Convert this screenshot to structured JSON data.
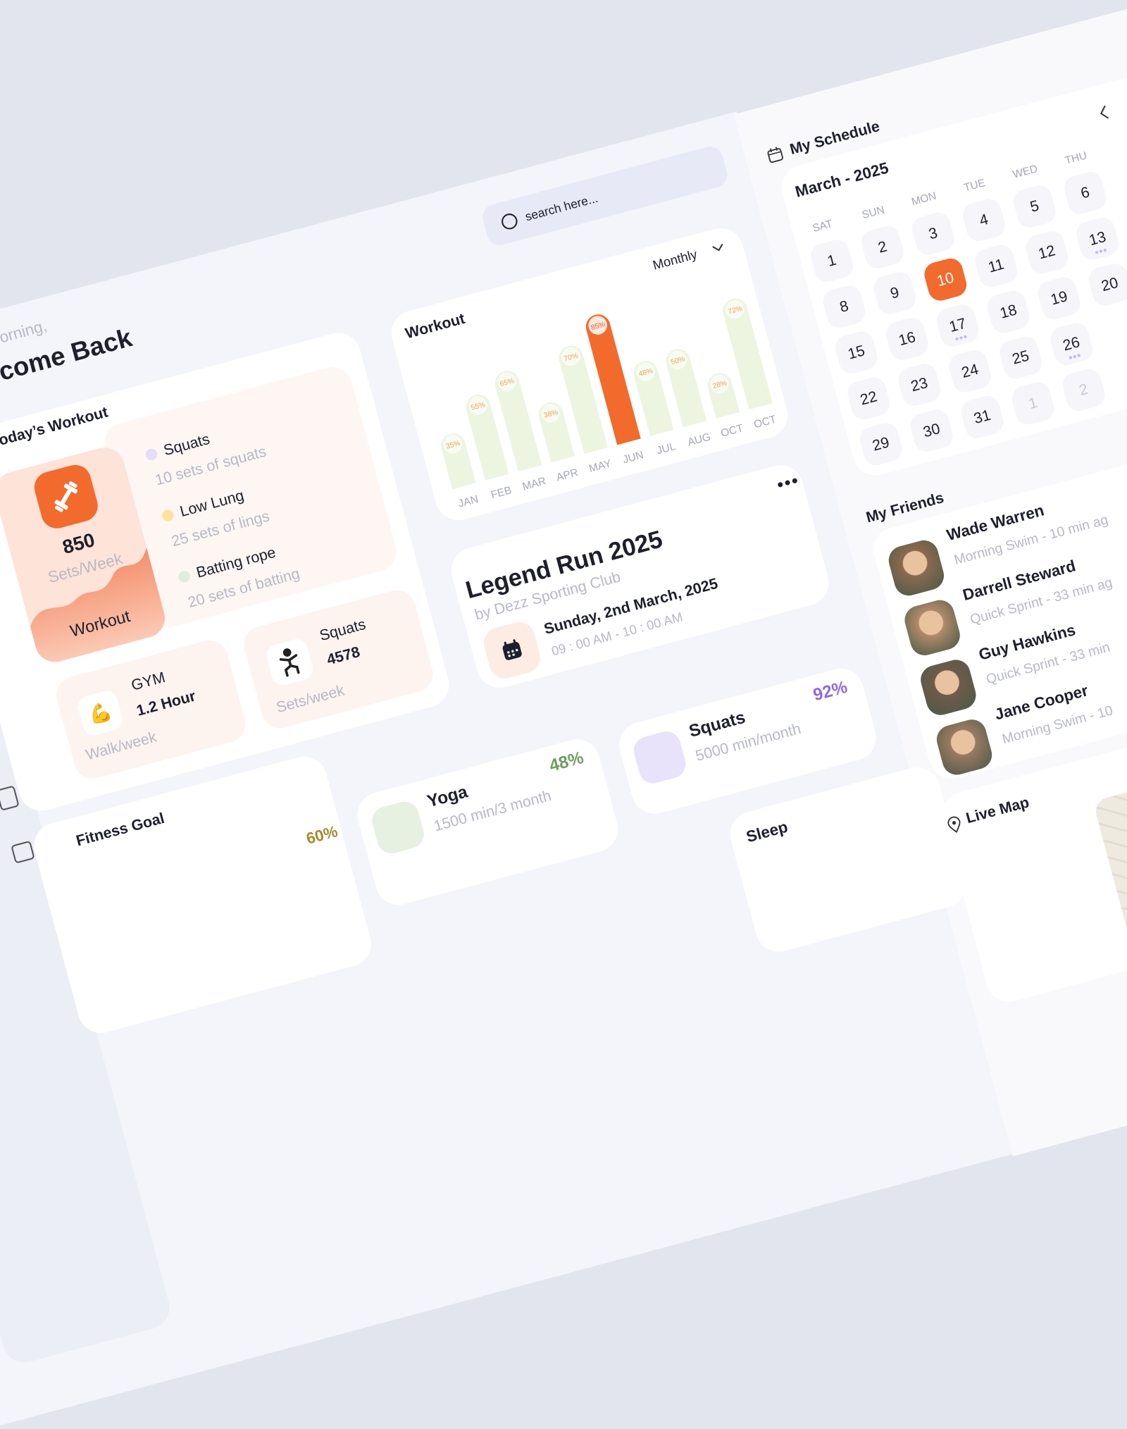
{
  "greeting": "orning,",
  "welcome": "come Back",
  "search_placeholder": "search here...",
  "todays_workout": {
    "title": "oday’s Workout",
    "total": {
      "value": 850,
      "unit": "Sets/Week",
      "label": "Workout"
    },
    "exercises": [
      {
        "name": "Squats",
        "detail": "10 sets of squats",
        "color": "#e6dcfb"
      },
      {
        "name": "Low Lung",
        "detail": "25 sets of lings",
        "color": "#fde39a"
      },
      {
        "name": "Batting rope",
        "detail": "20 sets of batting",
        "color": "#dcefdc"
      }
    ],
    "gym": {
      "name": "GYM",
      "value": "1.2 Hour",
      "unit": "Walk/week"
    },
    "squats": {
      "name": "Squats",
      "value": 4578,
      "unit": "Sets/week"
    }
  },
  "chart_data": {
    "type": "bar",
    "title": "Workout",
    "period": "Monthly",
    "categories": [
      "JAN",
      "FEB",
      "MAR",
      "APR",
      "MAY",
      "JUN",
      "JUL",
      "AUG",
      "OCT",
      "OCT"
    ],
    "values": [
      35,
      55,
      65,
      38,
      70,
      85,
      48,
      50,
      28,
      72
    ],
    "value_labels": [
      "35%",
      "55%",
      "65%",
      "38%",
      "70%",
      "85%",
      "48%",
      "50%",
      "28%",
      "72%"
    ],
    "color": "#edf5e1",
    "label_color": "#eaa552",
    "highlight": {
      "index": 5,
      "color": "#f26a2c",
      "label_color": "#e0602a"
    },
    "ylim": [
      0,
      100
    ]
  },
  "event": {
    "title": "Legend Run 2025",
    "organizer": "by Dezz Sporting Club",
    "date": "Sunday, 2nd March, 2025",
    "time": "09 : 00 AM - 10 : 00 AM"
  },
  "stats": [
    {
      "name": "Yoga",
      "detail": "1500 min/3 month",
      "percent": "48%",
      "color": "#6f9f5e",
      "icon_bg": "#e6f1e2"
    },
    {
      "name": "Squats",
      "detail": "5000 min/month",
      "percent": "92%",
      "color": "#8e6ae6",
      "icon_bg": "#e9e2fb"
    }
  ],
  "fitness_goal": {
    "title": "Fitness Goal",
    "percent": "60%"
  },
  "sleep": {
    "title": "Sleep"
  },
  "schedule": {
    "title": "My Schedule",
    "month": "March - 2025",
    "weekdays": [
      "SAT",
      "SUN",
      "MON",
      "TUE",
      "WED",
      "THU"
    ],
    "weeks": [
      [
        1,
        2,
        3,
        4,
        5,
        6
      ],
      [
        8,
        9,
        10,
        11,
        12,
        13
      ],
      [
        15,
        16,
        17,
        18,
        19,
        20
      ],
      [
        22,
        23,
        24,
        25,
        26
      ],
      [
        29,
        30,
        31
      ]
    ],
    "next_month": [
      1,
      2
    ],
    "selected": 10,
    "event_days": [
      13,
      17,
      26
    ]
  },
  "friends": {
    "title": "My Friends",
    "items": [
      {
        "name": "Wade Warren",
        "activity": "Morning Swim - 10 min ag"
      },
      {
        "name": "Darrell Steward",
        "activity": "Quick Sprint - 33 min ag"
      },
      {
        "name": "Guy Hawkins",
        "activity": "Quick Sprint - 33 min"
      },
      {
        "name": "Jane Cooper",
        "activity": "Morning Swim - 10"
      }
    ]
  },
  "live_map": "Live Map"
}
